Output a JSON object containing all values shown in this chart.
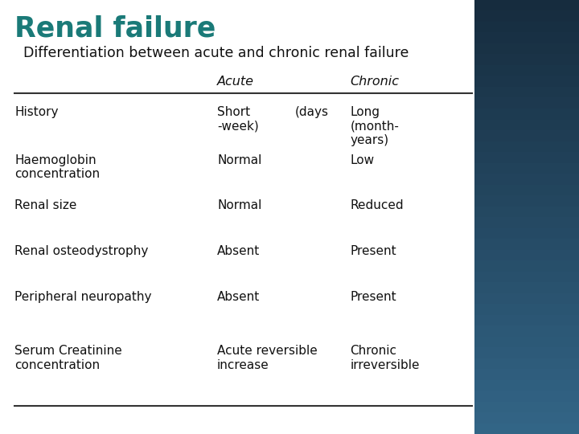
{
  "title": "Renal failure",
  "subtitle": "Differentiation between acute and chronic renal failure",
  "title_color": "#1a7a78",
  "subtitle_color": "#111111",
  "bg_left_color": "#ffffff",
  "bg_right_color_top": "#1a3a50",
  "bg_right_color_bottom": "#2d6080",
  "header_acute": "Acute",
  "header_chronic": "Chronic",
  "rows": [
    {
      "label": "History",
      "acute": "Short\n-week)",
      "acute_extra": "(days",
      "chronic": "Long\n(month-\nyears)"
    },
    {
      "label": "Haemoglobin\nconcentration",
      "acute": "Normal",
      "acute_extra": "",
      "chronic": "Low"
    },
    {
      "label": "Renal size",
      "acute": "Normal",
      "acute_extra": "",
      "chronic": "Reduced"
    },
    {
      "label": "Renal osteodystrophy",
      "acute": "Absent",
      "acute_extra": "",
      "chronic": "Present"
    },
    {
      "label": "Peripheral neuropathy",
      "acute": "Absent",
      "acute_extra": "",
      "chronic": "Present"
    },
    {
      "label": "Serum Creatinine\nconcentration",
      "acute": "Acute reversible\nincrease",
      "acute_extra": "",
      "chronic": "Chronic\nirreversible"
    }
  ],
  "table_text_color": "#111111",
  "line_color": "#333333",
  "figsize": [
    7.2,
    5.4
  ],
  "dpi": 100
}
